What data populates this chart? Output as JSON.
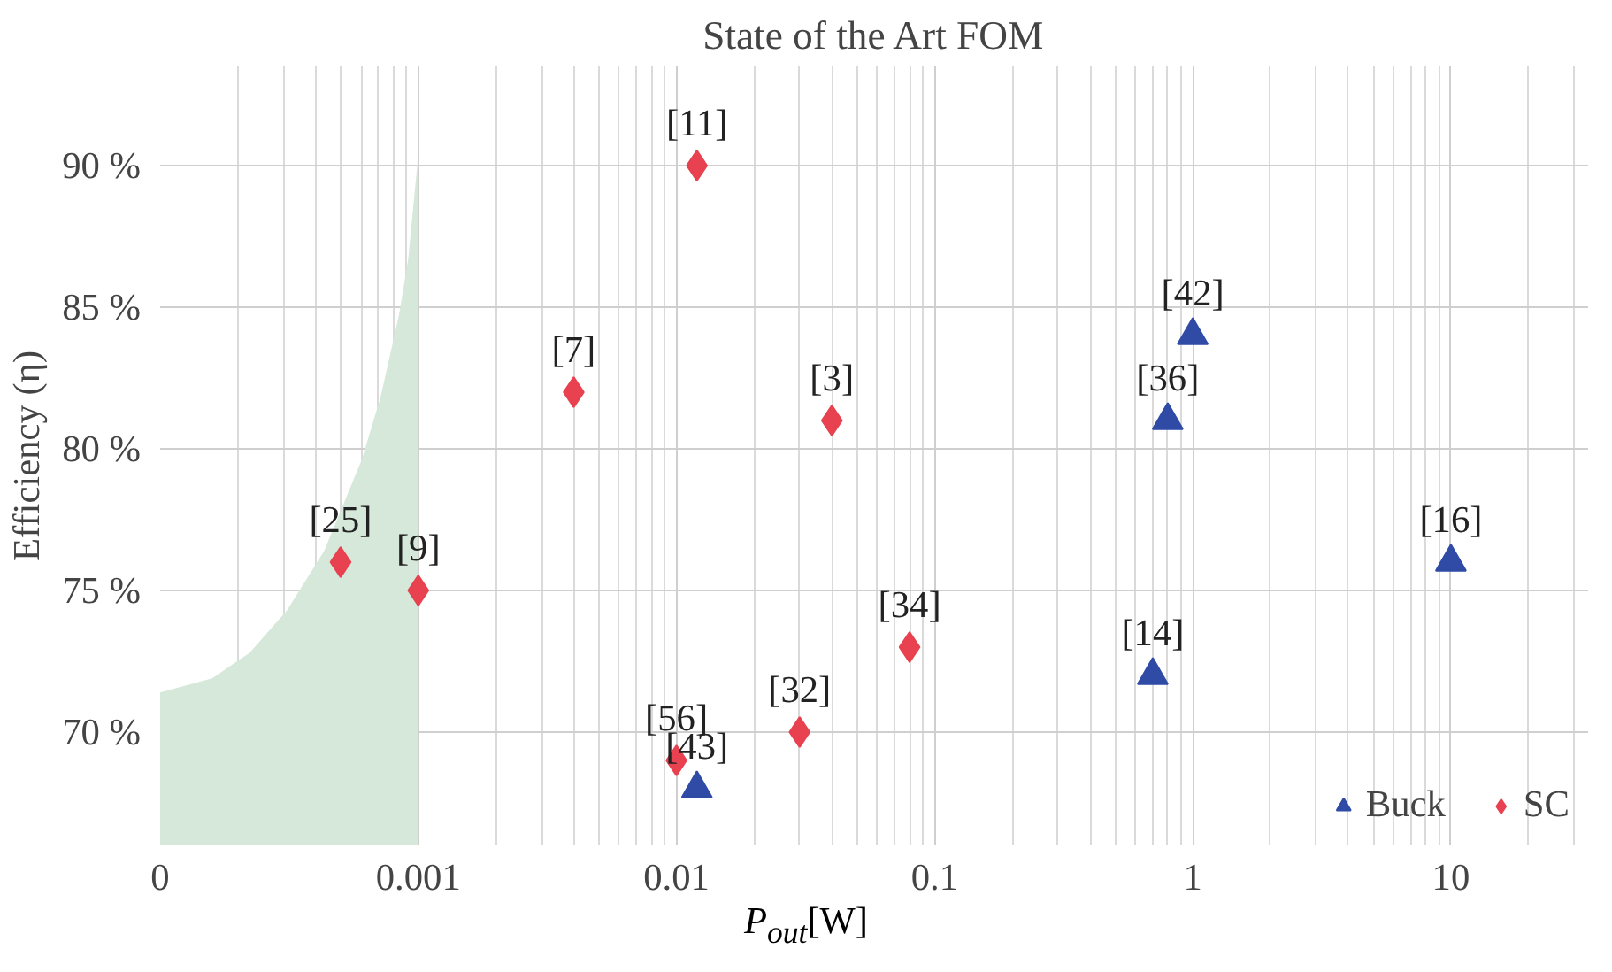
{
  "chart_data": {
    "type": "scatter",
    "title": "State of the Art FOM",
    "xlabel": "P$_{out}$[W]",
    "ylabel": "Efficiency (η)",
    "log": "x",
    "grid": true,
    "legend": "bottom right",
    "xlim": [
      0.0001,
      34
    ],
    "ylim": [
      66,
      93.5
    ],
    "xticks": [
      {
        "value": 0.0001,
        "label": "0"
      },
      0.001,
      0.01,
      0.1,
      1,
      10
    ],
    "yticks": [
      {
        "value": 70,
        "label": "70 %"
      },
      {
        "value": 75,
        "label": "75 %"
      },
      {
        "value": 80,
        "label": "80 %"
      },
      {
        "value": 85,
        "label": "85 %"
      },
      {
        "value": 90,
        "label": "90 %"
      }
    ],
    "series": [
      {
        "type": "area",
        "color": "#d5e8d9",
        "x": [
          0.0001,
          0.000159,
          0.000222,
          0.00031,
          0.000432,
          0.000603,
          0.000713,
          0.000841,
          0.000914,
          0.000993,
          0.001
        ],
        "values": [
          71.4,
          71.9,
          72.8,
          74.3,
          76.4,
          79.6,
          81.8,
          84.7,
          86.7,
          90.1,
          93.5
        ]
      },
      {
        "name": "Buck",
        "color": "#2f4ba5",
        "marker": "triangle",
        "x": [
          0.012,
          0.7,
          0.8,
          1,
          10
        ],
        "values": [
          68,
          72,
          81,
          84,
          76
        ]
      },
      {
        "name": "SC",
        "color": "#e8414f",
        "marker": "diamond",
        "x": [
          0.0005,
          0.001,
          0.004,
          0.012,
          0.01,
          0.03,
          0.04,
          0.08
        ],
        "values": [
          76,
          75,
          82,
          90,
          69,
          70,
          81,
          73
        ]
      }
    ],
    "annotations": [
      {
        "text": "[43]",
        "x": 0.012,
        "y": 68
      },
      {
        "text": "[14]",
        "x": 0.7,
        "y": 72
      },
      {
        "text": "[36]",
        "x": 0.8,
        "y": 81
      },
      {
        "text": "[42]",
        "x": 1,
        "y": 84
      },
      {
        "text": "[16]",
        "x": 10,
        "y": 76
      },
      {
        "text": "[25]",
        "x": 0.0005,
        "y": 76
      },
      {
        "text": "[9]",
        "x": 0.001,
        "y": 75
      },
      {
        "text": "[7]",
        "x": 0.004,
        "y": 82
      },
      {
        "text": "[11]",
        "x": 0.012,
        "y": 90
      },
      {
        "text": "[56]",
        "x": 0.01,
        "y": 69
      },
      {
        "text": "[32]",
        "x": 0.03,
        "y": 70
      },
      {
        "text": "[3]",
        "x": 0.04,
        "y": 81
      },
      {
        "text": "[34]",
        "x": 0.08,
        "y": 73
      }
    ]
  }
}
